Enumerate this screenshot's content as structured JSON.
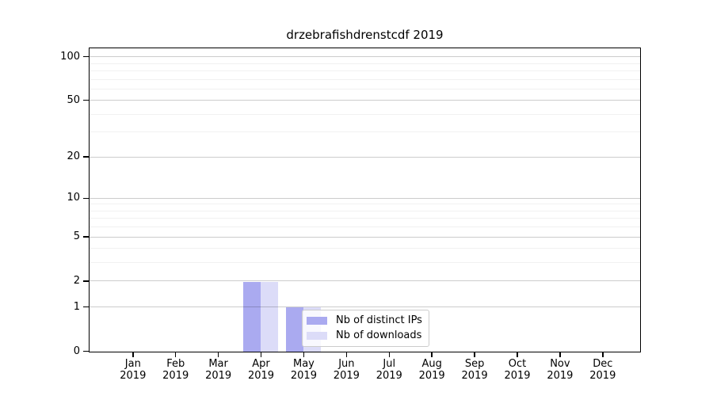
{
  "chart_data": {
    "type": "bar",
    "title": "drzebrafishdrenstcdf 2019",
    "categories": [
      "Jan",
      "Feb",
      "Mar",
      "Apr",
      "May",
      "Jun",
      "Jul",
      "Aug",
      "Sep",
      "Oct",
      "Nov",
      "Dec"
    ],
    "year_label": "2019",
    "series": [
      {
        "name": "Nb of distinct IPs",
        "color": "#aaaaf0",
        "values": [
          0,
          0,
          0,
          2,
          1,
          0,
          0,
          0,
          0,
          0,
          0,
          0
        ]
      },
      {
        "name": "Nb of downloads",
        "color": "#dcdcf8",
        "values": [
          0,
          0,
          0,
          2,
          1,
          0,
          0,
          0,
          0,
          0,
          0,
          0
        ]
      }
    ],
    "xlabel": "",
    "ylabel": "",
    "yscale": "log1p",
    "ylim": [
      0,
      113.6
    ],
    "yticks": [
      0,
      1,
      2,
      5,
      10,
      20,
      50,
      100
    ],
    "minor_gridlines": [
      3,
      4,
      6,
      7,
      8,
      9,
      30,
      40,
      60,
      70,
      80,
      90
    ],
    "grid": true,
    "legend_position": "inside-lower-middle",
    "background": "#ffffff"
  }
}
